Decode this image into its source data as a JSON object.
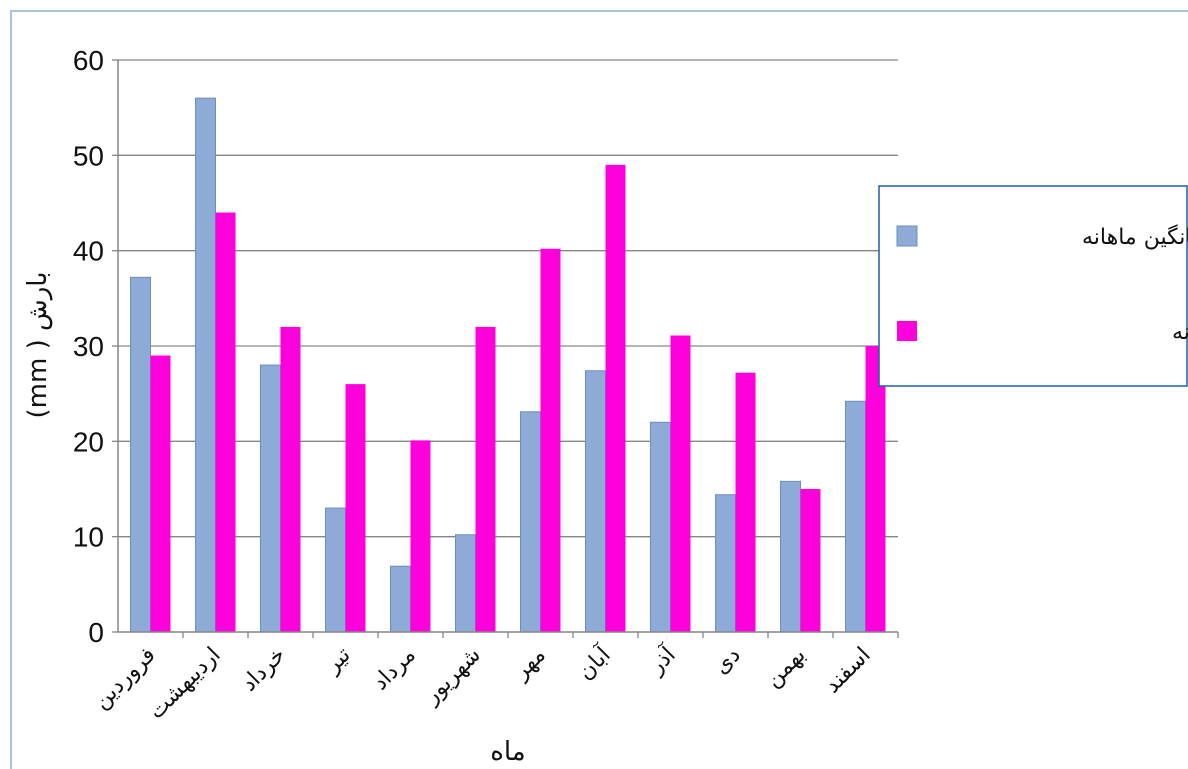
{
  "chart_data": {
    "type": "bar",
    "categories": [
      "فروردین",
      "اردیبهشت",
      "خرداد",
      "تیر",
      "مرداد",
      "شهریور",
      "مهر",
      "آبان",
      "آذر",
      "دی",
      "بهمن",
      "اسفند"
    ],
    "series": [
      {
        "name": "میانگین ماهانه",
        "color": "#8eaad6",
        "values": [
          37.2,
          56.0,
          28.0,
          13.0,
          6.9,
          10.2,
          23.1,
          27.4,
          22.0,
          14.4,
          15.8,
          24.2
        ]
      },
      {
        "name": "حداکثر بارندگی روزانه",
        "color": "#ff00dd",
        "values": [
          29.0,
          44.0,
          32.0,
          26.0,
          20.1,
          32.0,
          40.2,
          49.0,
          31.1,
          27.2,
          15.0,
          30.0
        ]
      }
    ],
    "xlabel": "ماه",
    "ylabel": "بارش ( mm)",
    "ylim": [
      0,
      60
    ],
    "yticks": [
      0,
      10,
      20,
      30,
      40,
      50,
      60
    ],
    "grid": true,
    "legend_position": "right"
  }
}
